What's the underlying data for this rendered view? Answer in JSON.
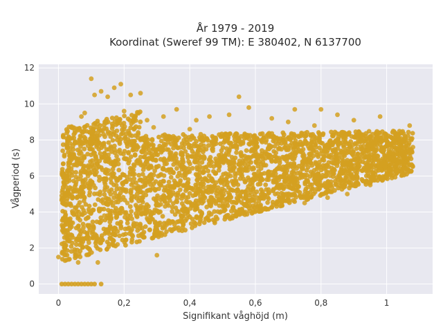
{
  "chart_data": {
    "type": "scatter",
    "title_line1": "År 1979 - 2019",
    "title_line2": "Koordinat (Sweref 99 TM): E 380402, N 6137700",
    "xlabel": "Signifikant våghöjd (m)",
    "ylabel": "Vågperiod (s)",
    "xlim": [
      -0.06,
      1.14
    ],
    "ylim": [
      -0.55,
      12.2
    ],
    "x_ticks": [
      0,
      0.2,
      0.4,
      0.6,
      0.8,
      1
    ],
    "x_tick_labels": [
      "0",
      "0,2",
      "0,4",
      "0,6",
      "0,8",
      "1"
    ],
    "y_ticks": [
      0,
      2,
      4,
      6,
      8,
      10,
      12
    ],
    "y_tick_labels": [
      "0",
      "2",
      "4",
      "6",
      "8",
      "10",
      "12"
    ],
    "grid": true,
    "legend": "none",
    "series": [
      {
        "color": "#d4a020",
        "points": [
          [
            0.0,
            1.5
          ],
          [
            0.02,
            1.3
          ],
          [
            0.03,
            2.6
          ],
          [
            0.04,
            5.3
          ],
          [
            0.05,
            7.0
          ],
          [
            0.05,
            8.5
          ],
          [
            0.06,
            1.2
          ],
          [
            0.06,
            3.2
          ],
          [
            0.07,
            9.3
          ],
          [
            0.08,
            9.5
          ],
          [
            0.09,
            2.0
          ],
          [
            0.09,
            6.0
          ],
          [
            0.1,
            11.4
          ],
          [
            0.1,
            7.5
          ],
          [
            0.11,
            10.5
          ],
          [
            0.12,
            8.9
          ],
          [
            0.12,
            1.2
          ],
          [
            0.13,
            10.7
          ],
          [
            0.14,
            3.8
          ],
          [
            0.15,
            10.4
          ],
          [
            0.16,
            6.8
          ],
          [
            0.17,
            10.9
          ],
          [
            0.18,
            2.2
          ],
          [
            0.19,
            11.1
          ],
          [
            0.2,
            9.6
          ],
          [
            0.21,
            4.5
          ],
          [
            0.22,
            10.5
          ],
          [
            0.23,
            7.8
          ],
          [
            0.25,
            10.6
          ],
          [
            0.26,
            2.6
          ],
          [
            0.27,
            9.1
          ],
          [
            0.28,
            5.2
          ],
          [
            0.29,
            8.7
          ],
          [
            0.3,
            1.6
          ],
          [
            0.32,
            9.3
          ],
          [
            0.33,
            3.3
          ],
          [
            0.35,
            8.2
          ],
          [
            0.36,
            9.7
          ],
          [
            0.38,
            4.1
          ],
          [
            0.4,
            8.6
          ],
          [
            0.42,
            9.1
          ],
          [
            0.44,
            5.0
          ],
          [
            0.46,
            9.3
          ],
          [
            0.48,
            8.0
          ],
          [
            0.5,
            4.3
          ],
          [
            0.52,
            9.4
          ],
          [
            0.55,
            10.4
          ],
          [
            0.57,
            4.0
          ],
          [
            0.58,
            9.8
          ],
          [
            0.6,
            7.8
          ],
          [
            0.62,
            4.1
          ],
          [
            0.65,
            9.2
          ],
          [
            0.68,
            4.4
          ],
          [
            0.7,
            9.0
          ],
          [
            0.72,
            9.7
          ],
          [
            0.75,
            4.5
          ],
          [
            0.78,
            8.8
          ],
          [
            0.8,
            9.7
          ],
          [
            0.82,
            4.8
          ],
          [
            0.85,
            9.4
          ],
          [
            0.88,
            5.0
          ],
          [
            0.9,
            9.1
          ],
          [
            0.92,
            8.3
          ],
          [
            0.95,
            5.5
          ],
          [
            0.98,
            9.3
          ],
          [
            1.0,
            6.1
          ],
          [
            1.02,
            8.5
          ],
          [
            1.05,
            7.0
          ],
          [
            1.07,
            8.8
          ],
          [
            1.08,
            7.6
          ]
        ],
        "zero_points": [
          [
            0.01,
            0
          ],
          [
            0.02,
            0
          ],
          [
            0.03,
            0
          ],
          [
            0.04,
            0
          ],
          [
            0.05,
            0
          ],
          [
            0.06,
            0
          ],
          [
            0.07,
            0
          ],
          [
            0.08,
            0
          ],
          [
            0.09,
            0
          ],
          [
            0.1,
            0
          ],
          [
            0.11,
            0
          ],
          [
            0.13,
            0
          ]
        ]
      }
    ]
  }
}
